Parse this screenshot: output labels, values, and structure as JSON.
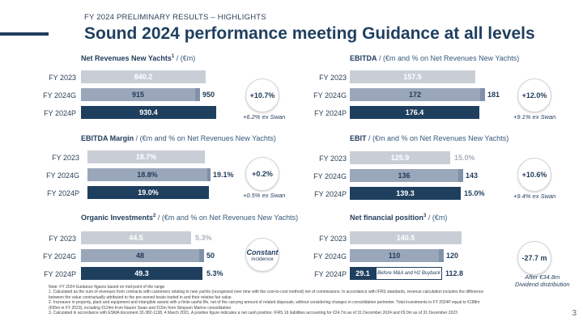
{
  "header": {
    "subtitle": "FY 2024 PRELIMINARY RESULTS – HIGHLIGHTS",
    "title": "Sound 2024 performance meeting Guidance at all levels"
  },
  "panels": {
    "net_revenues": {
      "title_bold": "Net Revenues New Yachts",
      "title_sup": "1",
      "title_rest": " / (€m)",
      "rows": [
        {
          "label": "FY 2023",
          "value": "840.2"
        },
        {
          "label": "FY 2024G",
          "value": "915",
          "ext_value": "950"
        },
        {
          "label": "FY 2024P",
          "value": "930.4"
        }
      ],
      "circle": "+10.7%",
      "note": "+6.2% ex Swan"
    },
    "ebitda": {
      "title_bold": "EBITDA",
      "title_rest": " / (€m and % on Net Revenues New Yachts)",
      "rows": [
        {
          "label": "FY 2023",
          "value": "157.5"
        },
        {
          "label": "FY 2024G",
          "value": "172",
          "ext_value": "181"
        },
        {
          "label": "FY 2024P",
          "value": "176.4"
        }
      ],
      "circle": "+12.0%",
      "note": "+9.1% ex Swan"
    },
    "ebitda_margin": {
      "title_bold": "EBITDA Margin",
      "title_rest": " / (€m and % on Net Revenues New Yachts)",
      "rows": [
        {
          "label": "FY 2023",
          "value": "18.7%"
        },
        {
          "label": "FY 2024G",
          "value": "18.8%",
          "ext_value": "19.1%"
        },
        {
          "label": "FY 2024P",
          "value": "19.0%"
        }
      ],
      "circle": "+0.2%",
      "note": "+0.5% ex Swan"
    },
    "ebit": {
      "title_bold": "EBIT",
      "title_rest": " / (€m and % on Net Revenues New Yachts)",
      "rows": [
        {
          "label": "FY 2023",
          "value": "125.9",
          "pct": "15.0%"
        },
        {
          "label": "FY 2024G",
          "value": "136",
          "ext_value": "143"
        },
        {
          "label": "FY 2024P",
          "value": "139.3",
          "pct": "15.0%"
        }
      ],
      "circle": "+10.6%",
      "note": "+9.4% ex Swan"
    },
    "organic_investments": {
      "title_bold": "Organic Investments",
      "title_sup": "2",
      "title_rest": " / (€m and % on Net Revenues New Yachts)",
      "rows": [
        {
          "label": "FY 2023",
          "value": "44.5",
          "pct": "5.3%"
        },
        {
          "label": "FY 2024G",
          "value": "48",
          "ext_value": "50"
        },
        {
          "label": "FY 2024P",
          "value": "49.3",
          "pct": "5.3%"
        }
      ],
      "circle_line1": "Constant",
      "circle_line2": "incidence"
    },
    "net_financial_position": {
      "title_bold": "Net financial position",
      "title_sup": "3",
      "title_rest": " / (€m)",
      "rows": [
        {
          "label": "FY 2023",
          "value": "140.5"
        },
        {
          "label": "FY 2024G",
          "value": "110",
          "ext_value": "120"
        },
        {
          "label": "FY 2024P",
          "value": "29.1",
          "box": "Before M&A and H2 Buyback",
          "end_value": "112.8"
        }
      ],
      "circle": "-27.7 m",
      "note_line1": "After €34.8m",
      "note_line2": "Dividend distribution"
    }
  },
  "footnotes": [
    "Note: FY 2024 Guidance figures based on mid-point of the range",
    "1.      Calculated as the sum of revenues from contracts with customers relating to new yachts (recognised over time with the cost-to-cost method) net of commissions. In accordance with IFRS standards, revenue calculation includes the difference",
    "         between the value contractually attributed to the pre-owned boats traded in and their relative fair value",
    "2.      Increases in property, plant and equipment and intangible assets with a finite useful life, net of the carrying amount of related disposals, without considering changes in consolidation perimeter. Total investments in FY 2024P equal to €188m",
    "         (€65m in FY 2023), including €124m from Nautor Swan and €15m from Simpson Marine consolidation",
    "3.      Calculated in accordance with ESMA document 32-382-1138, 4 March 2021. A positive figure indicates a net cash position. IFRS 16 liabilities accounting for €24.7m as of 31 December 2024 and €9.0m as of 31 December 2023"
  ],
  "page_number": "3",
  "colors": {
    "navy": "#1f3f5f",
    "light_grey": "#c9ced6",
    "mid_grey": "#9aa7ba"
  }
}
